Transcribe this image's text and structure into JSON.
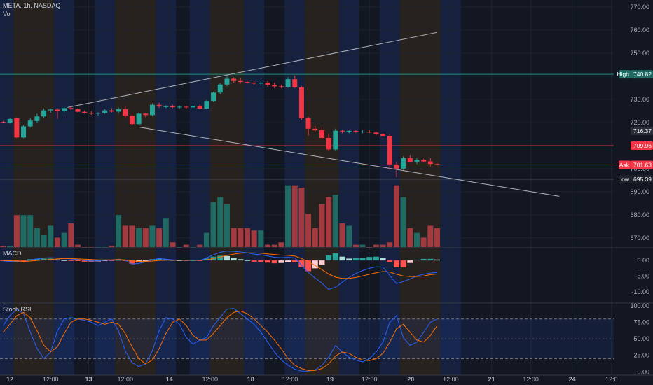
{
  "header": {
    "symbol_line": "META, 1h, NASDAQ",
    "volume_label": "Vol"
  },
  "panes": {
    "macd_label": "MACD",
    "stoch_label": "Stoch RSI"
  },
  "colors": {
    "background": "#131722",
    "up": "#26a69a",
    "down": "#f23645",
    "vol_up": "#1f6b63",
    "vol_down": "#a23a40",
    "macd_line": "#2962ff",
    "signal_line": "#ff6d00",
    "stoch_k": "#2962ff",
    "stoch_d": "#ff6d00",
    "high_line": "#26a69a",
    "ask_line": "#f23645",
    "grid": "#1f2330",
    "trendline": "#b2b5be"
  },
  "chart_data": [
    {
      "type": "candlestick",
      "title": "META, 1h, NASDAQ",
      "ylim": [
        666,
        773
      ],
      "y_ticks": [
        670,
        680,
        690,
        700,
        710,
        720,
        730,
        740,
        750,
        760,
        770
      ],
      "x_tick_labels": [
        "12",
        "12:00",
        "13",
        "12:00",
        "14",
        "12:00",
        "18",
        "12:00",
        "19",
        "12:00",
        "20",
        "12:00",
        "21",
        "12:00",
        "24",
        "12:0"
      ],
      "x_tick_bars": [
        1,
        7,
        12.6,
        18,
        24.5,
        30.5,
        36.5,
        42.3,
        48.2,
        54,
        60.1,
        66,
        72,
        77.8,
        83.9,
        89.7
      ],
      "price_tags": [
        {
          "label": "High",
          "value": "740.82",
          "price": 740.82,
          "kind": "high"
        },
        {
          "label": "",
          "value": "716.37",
          "price": 716.37,
          "kind": "close"
        },
        {
          "label": "",
          "value": "709.96",
          "price": 709.96,
          "kind": "bid"
        },
        {
          "label": "Ask",
          "value": "701.63",
          "price": 701.63,
          "kind": "ask"
        },
        {
          "label": "Low",
          "value": "695.39",
          "price": 695.39,
          "kind": "low"
        }
      ],
      "trendlines": [
        {
          "from": [
            9.5,
            726.5
          ],
          "to": [
            64,
            759
          ]
        },
        {
          "from": [
            20,
            718
          ],
          "to": [
            82,
            688
          ]
        }
      ],
      "candles": [
        [
          720.2,
          720.6,
          719.6,
          720.0
        ],
        [
          720.0,
          722.0,
          719.5,
          721.5
        ],
        [
          721.8,
          722.2,
          713.2,
          713.5
        ],
        [
          713.5,
          718.8,
          713.2,
          718.3
        ],
        [
          718.3,
          721.8,
          717.8,
          720.8
        ],
        [
          720.6,
          723.8,
          719.8,
          722.6
        ],
        [
          722.6,
          726.0,
          722.0,
          725.2
        ],
        [
          725.2,
          726.0,
          724.2,
          725.6
        ],
        [
          725.6,
          726.2,
          721.6,
          724.8
        ],
        [
          724.8,
          726.9,
          723.8,
          726.2
        ],
        [
          726.2,
          726.9,
          725.3,
          725.8
        ],
        [
          725.8,
          726.2,
          724.3,
          724.6
        ],
        [
          724.6,
          725.2,
          723.8,
          724.2
        ],
        [
          724.2,
          724.9,
          723.3,
          723.8
        ],
        [
          723.8,
          724.4,
          722.9,
          724.1
        ],
        [
          724.1,
          725.8,
          723.7,
          725.2
        ],
        [
          725.2,
          726.2,
          724.3,
          724.7
        ],
        [
          724.7,
          726.5,
          724.0,
          725.7
        ],
        [
          725.7,
          726.9,
          722.0,
          723.0
        ],
        [
          723.0,
          724.0,
          718.8,
          719.3
        ],
        [
          719.3,
          724.3,
          719.0,
          723.8
        ],
        [
          723.8,
          724.1,
          722.3,
          723.2
        ],
        [
          723.2,
          728.2,
          722.8,
          727.6
        ],
        [
          727.6,
          728.6,
          726.3,
          726.9
        ],
        [
          726.9,
          727.4,
          726.2,
          727.0
        ],
        [
          727.0,
          727.6,
          726.2,
          726.6
        ],
        [
          726.6,
          727.3,
          726.0,
          726.8
        ],
        [
          726.8,
          727.1,
          726.0,
          726.5
        ],
        [
          726.5,
          727.4,
          725.8,
          727.0
        ],
        [
          727.0,
          727.8,
          725.7,
          726.0
        ],
        [
          726.0,
          729.8,
          725.8,
          729.3
        ],
        [
          729.3,
          733.3,
          729.0,
          732.9
        ],
        [
          732.9,
          737.0,
          732.3,
          736.4
        ],
        [
          736.4,
          739.8,
          735.8,
          738.9
        ],
        [
          738.9,
          739.5,
          737.2,
          737.9
        ],
        [
          737.9,
          739.0,
          736.8,
          737.5
        ],
        [
          737.5,
          737.9,
          736.8,
          737.2
        ],
        [
          737.2,
          738.0,
          736.3,
          736.8
        ],
        [
          736.8,
          737.9,
          735.8,
          737.2
        ],
        [
          737.2,
          737.9,
          735.3,
          736.3
        ],
        [
          736.3,
          737.3,
          734.8,
          735.6
        ],
        [
          735.6,
          736.4,
          734.8,
          735.4
        ],
        [
          735.4,
          739.5,
          735.0,
          738.7
        ],
        [
          738.7,
          740.3,
          734.8,
          735.2
        ],
        [
          735.2,
          735.7,
          721.0,
          721.8
        ],
        [
          721.8,
          722.4,
          714.3,
          717.3
        ],
        [
          717.3,
          718.5,
          715.8,
          716.6
        ],
        [
          716.6,
          717.8,
          712.8,
          713.3
        ],
        [
          713.3,
          715.0,
          707.6,
          708.3
        ],
        [
          708.3,
          717.3,
          707.8,
          716.4
        ],
        [
          716.4,
          716.9,
          715.3,
          716.1
        ],
        [
          716.1,
          716.8,
          715.3,
          716.3
        ],
        [
          716.3,
          716.8,
          715.5,
          715.9
        ],
        [
          715.9,
          716.6,
          715.3,
          716.0
        ],
        [
          716.0,
          716.8,
          715.4,
          715.6
        ],
        [
          715.6,
          716.1,
          714.4,
          714.9
        ],
        [
          714.9,
          715.3,
          713.8,
          714.2
        ],
        [
          714.2,
          714.8,
          699.5,
          701.8
        ],
        [
          701.8,
          702.8,
          696.3,
          700.0
        ],
        [
          700.0,
          705.3,
          699.5,
          704.5
        ],
        [
          704.5,
          705.8,
          702.6,
          703.0
        ],
        [
          703.0,
          704.5,
          702.0,
          703.8
        ],
        [
          703.8,
          704.3,
          702.6,
          703.1
        ],
        [
          703.1,
          704.6,
          701.0,
          702.0
        ],
        [
          702.0,
          702.4,
          701.3,
          701.6
        ]
      ],
      "volume_scale": 26.5,
      "volume": [
        0.5,
        0.5,
        13.5,
        13.5,
        13.5,
        8,
        5,
        9,
        4,
        6,
        10,
        1,
        0,
        0,
        0,
        0,
        0.5,
        13.5,
        9,
        9,
        8,
        8,
        9,
        8,
        12,
        2,
        0,
        1,
        0,
        1,
        6,
        19,
        21,
        18,
        8,
        8,
        8,
        7,
        7,
        1,
        1,
        2,
        26,
        26,
        25,
        14,
        8,
        18,
        21,
        22,
        10,
        9,
        1,
        1,
        0,
        1,
        1,
        2,
        26,
        21,
        8,
        6,
        4,
        9,
        8
      ],
      "macd": {
        "ylim": [
          -13.3,
          3.8
        ],
        "y_ticks": [
          0.0,
          -5.0,
          -10.0
        ],
        "macd_line": [
          -0.2,
          -0.3,
          -0.4,
          -0.5,
          0.2,
          0.5,
          0.8,
          0.9,
          0.8,
          0.6,
          0.5,
          0.3,
          0.0,
          -0.2,
          -0.1,
          0.1,
          0.1,
          0.4,
          0.1,
          -1.2,
          -0.9,
          -0.5,
          0.2,
          0.6,
          0.4,
          0.2,
          0.1,
          0.0,
          0.1,
          0.0,
          0.8,
          1.8,
          2.6,
          3.0,
          2.9,
          2.7,
          2.4,
          2.0,
          1.8,
          1.4,
          1.0,
          0.9,
          1.0,
          0.8,
          -1.5,
          -3.8,
          -5.6,
          -7.2,
          -9.2,
          -8.5,
          -6.9,
          -5.4,
          -4.1,
          -3.2,
          -2.5,
          -2.0,
          -2.1,
          -4.8,
          -7.3,
          -6.7,
          -5.9,
          -4.9,
          -4.4,
          -4.0,
          -3.8
        ],
        "signal_line": [
          0.0,
          -0.1,
          -0.2,
          -0.3,
          -0.2,
          0.0,
          0.2,
          0.3,
          0.5,
          0.6,
          0.6,
          0.5,
          0.4,
          0.3,
          0.2,
          0.2,
          0.2,
          0.3,
          0.2,
          -0.2,
          -0.3,
          -0.3,
          -0.2,
          0.0,
          0.1,
          0.1,
          0.1,
          0.1,
          0.1,
          0.1,
          0.2,
          0.6,
          1.1,
          1.6,
          2.0,
          2.3,
          2.4,
          2.4,
          2.3,
          2.1,
          1.9,
          1.7,
          1.6,
          1.4,
          0.6,
          -0.4,
          -1.6,
          -2.9,
          -4.3,
          -5.3,
          -5.7,
          -5.7,
          -5.4,
          -4.9,
          -4.4,
          -3.9,
          -3.5,
          -3.7,
          -4.4,
          -4.9,
          -5.1,
          -5.1,
          -4.9,
          -4.5,
          -4.3
        ],
        "histogram": [
          -0.2,
          -0.2,
          -0.2,
          -0.2,
          0.4,
          0.5,
          0.6,
          0.6,
          0.3,
          0.0,
          -0.1,
          -0.2,
          -0.4,
          -0.5,
          -0.3,
          -0.1,
          -0.1,
          0.1,
          -0.1,
          -1.0,
          -0.6,
          -0.2,
          0.4,
          0.6,
          0.3,
          0.1,
          0.0,
          -0.1,
          0.0,
          -0.1,
          0.6,
          1.2,
          1.5,
          1.4,
          0.9,
          0.4,
          0.0,
          -0.4,
          -0.5,
          -0.7,
          -0.9,
          -0.8,
          -0.6,
          -0.6,
          -2.1,
          -3.4,
          -2.5,
          -1.3,
          1.6,
          2.3,
          1.2,
          0.6,
          0.7,
          0.9,
          1.1,
          1.2,
          0.9,
          -0.6,
          -2.2,
          -2.2,
          -0.8,
          0.2,
          0.5,
          0.5,
          0.3
        ]
      },
      "stoch_rsi": {
        "ylim": [
          -5,
          103
        ],
        "y_ticks": [
          100.0,
          75.0,
          50.0,
          25.0,
          0.0
        ],
        "band": [
          20,
          80
        ],
        "k": [
          70,
          85,
          95,
          88,
          60,
          35,
          20,
          30,
          62,
          80,
          82,
          80,
          78,
          75,
          70,
          75,
          80,
          62,
          32,
          14,
          8,
          12,
          32,
          62,
          82,
          80,
          72,
          52,
          42,
          48,
          52,
          70,
          82,
          95,
          96,
          88,
          80,
          72,
          60,
          45,
          30,
          18,
          10,
          4,
          1,
          1,
          3,
          10,
          22,
          40,
          30,
          22,
          18,
          15,
          20,
          30,
          45,
          75,
          85,
          52,
          40,
          45,
          60,
          75,
          80
        ],
        "d": [
          60,
          72,
          85,
          90,
          82,
          62,
          40,
          30,
          38,
          58,
          75,
          80,
          80,
          78,
          75,
          72,
          75,
          72,
          58,
          38,
          20,
          12,
          18,
          35,
          58,
          75,
          80,
          70,
          55,
          48,
          48,
          58,
          70,
          82,
          90,
          92,
          88,
          80,
          70,
          60,
          48,
          35,
          20,
          10,
          5,
          2,
          2,
          5,
          12,
          24,
          30,
          28,
          22,
          18,
          17,
          20,
          28,
          45,
          65,
          72,
          60,
          48,
          45,
          55,
          70
        ]
      },
      "session_bands": [
        {
          "from": -0.5,
          "to": 1.5,
          "color": "blue"
        },
        {
          "from": 1.5,
          "to": 7.5,
          "color": "orange"
        },
        {
          "from": 7.5,
          "to": 10.5,
          "color": "blue"
        },
        {
          "from": 13.5,
          "to": 16.5,
          "color": "blue"
        },
        {
          "from": 16.5,
          "to": 22.5,
          "color": "orange"
        },
        {
          "from": 22.5,
          "to": 25.5,
          "color": "blue"
        },
        {
          "from": 27.5,
          "to": 30.5,
          "color": "blue"
        },
        {
          "from": 30.5,
          "to": 35.5,
          "color": "orange"
        },
        {
          "from": 35.5,
          "to": 38.5,
          "color": "blue"
        },
        {
          "from": 41.5,
          "to": 44.5,
          "color": "blue"
        },
        {
          "from": 44.5,
          "to": 49.5,
          "color": "orange"
        },
        {
          "from": 49.5,
          "to": 52.5,
          "color": "blue"
        },
        {
          "from": 55.5,
          "to": 58.5,
          "color": "blue"
        },
        {
          "from": 58.5,
          "to": 64.5,
          "color": "orange"
        },
        {
          "from": 64.5,
          "to": 67.5,
          "color": "blue"
        }
      ]
    }
  ]
}
